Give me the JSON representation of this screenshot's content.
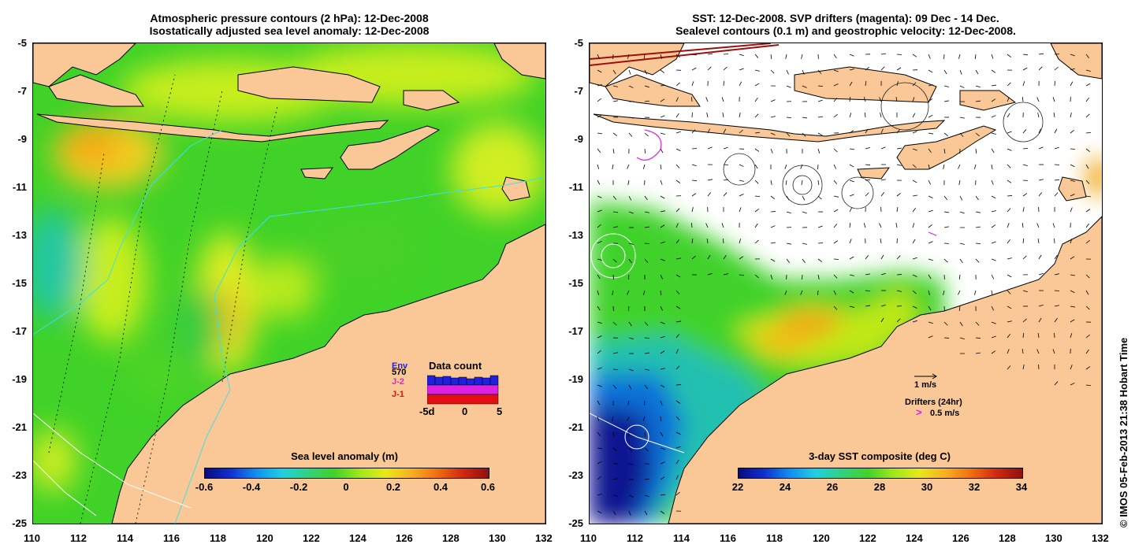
{
  "left_panel": {
    "title_line1": "Atmospheric pressure contours (2 hPa): 12-Dec-2008",
    "title_line2": "Isostatically adjusted sea level anomaly: 12-Dec-2008",
    "colorbar_title": "Sea level anomaly (m)",
    "colorbar_ticks": [
      "-0.6",
      "-0.4",
      "-0.2",
      "0",
      "0.2",
      "0.4",
      "0.6"
    ],
    "legend": {
      "row1": "Env",
      "row1_value": "570",
      "row2": "J-2",
      "row3": "J-1",
      "title": "Data count",
      "axis": [
        "-5d",
        "0",
        "5"
      ]
    }
  },
  "right_panel": {
    "title_line1": "SST: 12-Dec-2008. SVP drifters (magenta): 09 Dec - 14 Dec.",
    "title_line2": "Sealevel contours (0.1 m) and geostrophic velocity: 12-Dec-2008.",
    "colorbar_title": "3-day SST composite (deg C)",
    "colorbar_ticks": [
      "22",
      "24",
      "26",
      "28",
      "30",
      "32",
      "34"
    ],
    "velocity_scale": "1 m/s",
    "drifters_label": "Drifters (24hr)",
    "drifters_scale": "0.5 m/s"
  },
  "axes": {
    "lat_ticks": [
      "-5",
      "-7",
      "-9",
      "-11",
      "-13",
      "-15",
      "-17",
      "-19",
      "-21",
      "-23",
      "-25"
    ],
    "lon_ticks": [
      "110",
      "112",
      "114",
      "116",
      "118",
      "120",
      "122",
      "124",
      "126",
      "128",
      "130",
      "132"
    ]
  },
  "credit": "© IMOS 05-Feb-2013 21:38 Hobart Time",
  "colors": {
    "land": "#f9c896",
    "sea_green": "#3cd22a",
    "sea_yellow": "#d8f01a",
    "magenta": "#e020e0"
  }
}
